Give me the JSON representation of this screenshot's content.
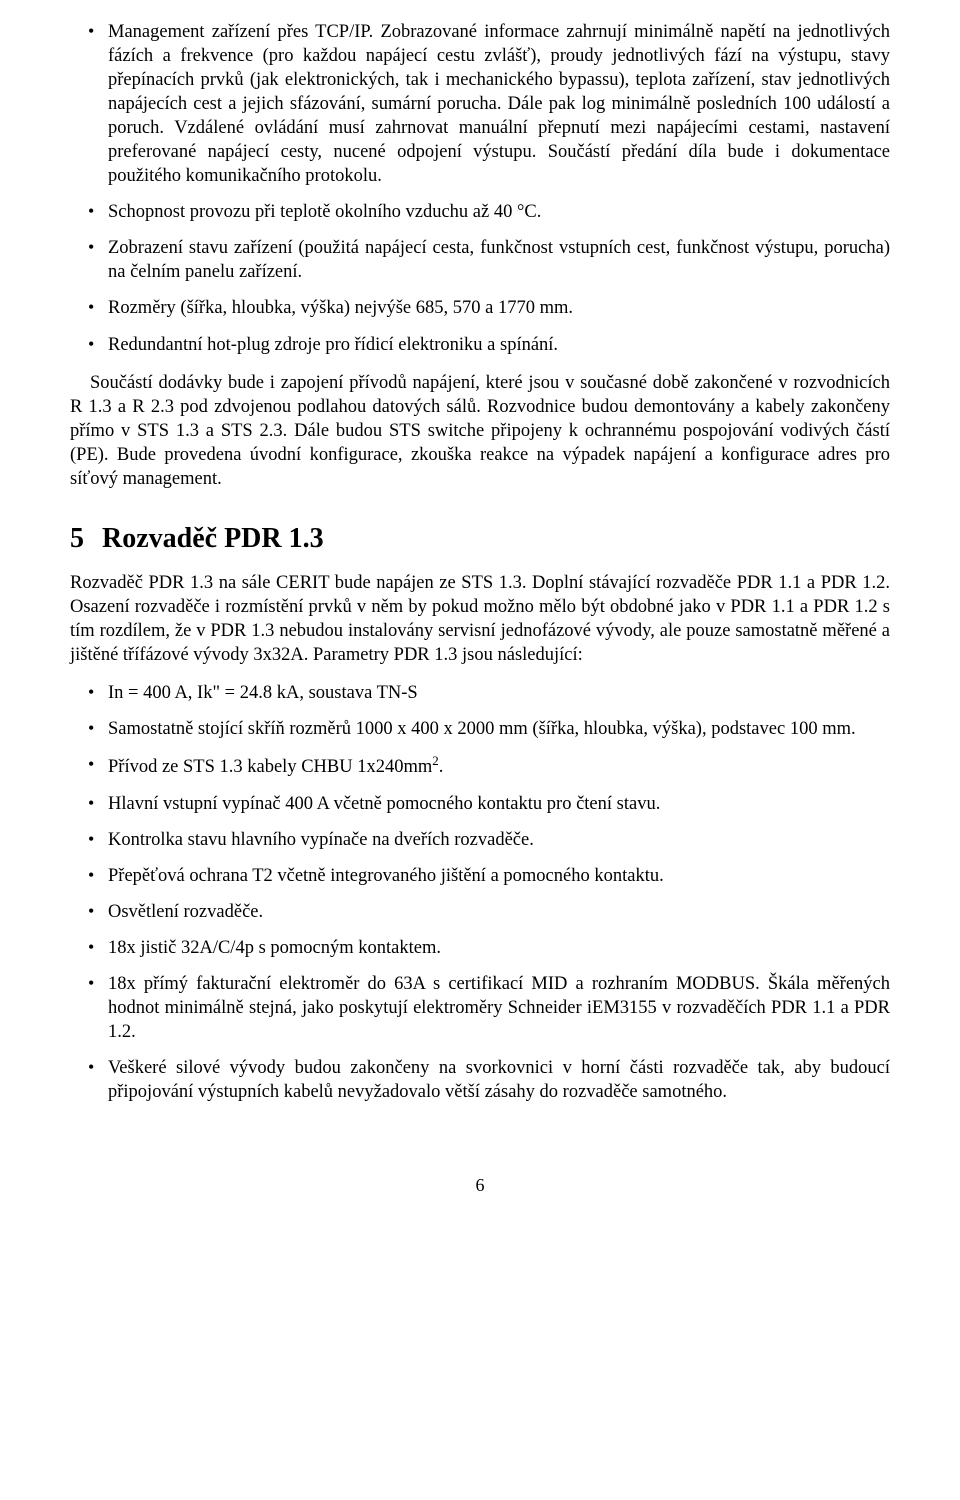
{
  "list1": {
    "i0": "Management zařízení přes TCP/IP. Zobrazované informace zahrnují minimálně napětí na jednotlivých fázích a frekvence (pro každou napájecí cestu zvlášť), proudy jednotlivých fází na výstupu, stavy přepínacích prvků (jak elektronických, tak i mechanického bypassu), teplota zařízení, stav jednotlivých napájecích cest a jejich sfázování, sumární porucha. Dále pak log minimálně posledních 100 událostí a poruch. Vzdálené ovládání musí zahrnovat manuální přepnutí mezi napájecími cestami, nastavení preferované napájecí cesty, nucené odpojení výstupu. Součástí předání díla bude i dokumentace použitého komunikačního protokolu.",
    "i1": "Schopnost provozu při teplotě okolního vzduchu až 40 °C.",
    "i2": "Zobrazení stavu zařízení (použitá napájecí cesta, funkčnost vstupních cest, funkčnost výstupu, porucha) na čelním panelu zařízení.",
    "i3": "Rozměry (šířka, hloubka, výška) nejvýše 685, 570 a 1770 mm.",
    "i4": "Redundantní hot-plug zdroje pro řídicí elektroniku a spínání."
  },
  "para1": "Součástí dodávky bude i zapojení přívodů napájení, které jsou v současné době zakončené v rozvodnicích R 1.3 a R 2.3 pod zdvojenou podlahou datových sálů. Rozvodnice budou demontovány a kabely zakončeny přímo v STS 1.3 a STS 2.3. Dále budou STS switche připojeny k ochrannému pospojování vodivých částí (PE). Bude provedena úvodní konfigurace, zkouška reakce na výpadek napájení a konfigurace adres pro síťový management.",
  "section": {
    "num": "5",
    "title": "Rozvaděč PDR 1.3"
  },
  "para2": "Rozvaděč PDR 1.3 na sále CERIT bude napájen ze STS 1.3. Doplní stávající rozvaděče PDR 1.1 a PDR 1.2. Osazení rozvaděče i rozmístění prvků v něm by pokud možno mělo být obdobné jako v PDR 1.1 a PDR 1.2 s tím rozdílem, že v PDR 1.3 nebudou instalovány servisní jednofázové vývody, ale pouze samostatně měřené a jištěné třífázové vývody 3x32A. Parametry PDR 1.3 jsou následující:",
  "list2": {
    "i0": "In = 400 A, Ik\" = 24.8 kA, soustava TN-S",
    "i1": "Samostatně stojící skříň rozměrů 1000 x 400 x 2000 mm (šířka, hloubka, výška), podstavec 100 mm.",
    "i2_pre": "Přívod ze STS 1.3 kabely CHBU 1x240mm",
    "i2_sup": "2",
    "i2_post": ".",
    "i3": "Hlavní vstupní vypínač 400 A včetně pomocného kontaktu pro čtení stavu.",
    "i4": "Kontrolka stavu hlavního vypínače na dveřích rozvaděče.",
    "i5": "Přepěťová ochrana T2 včetně integrovaného jištění a pomocného kontaktu.",
    "i6": "Osvětlení rozvaděče.",
    "i7": "18x jistič 32A/C/4p s pomocným kontaktem.",
    "i8": "18x přímý fakturační elektroměr do 63A s certifikací MID a rozhraním MODBUS. Škála měřených hodnot minimálně stejná, jako poskytují elektroměry Schneider iEM3155 v rozvaděčích PDR 1.1 a PDR 1.2.",
    "i9": "Veškeré silové vývody budou zakončeny na svorkovnici v horní části rozvaděče tak, aby budoucí připojování výstupních kabelů nevyžadovalo větší zásahy do rozvaděče samotného."
  },
  "pagenum": "6"
}
